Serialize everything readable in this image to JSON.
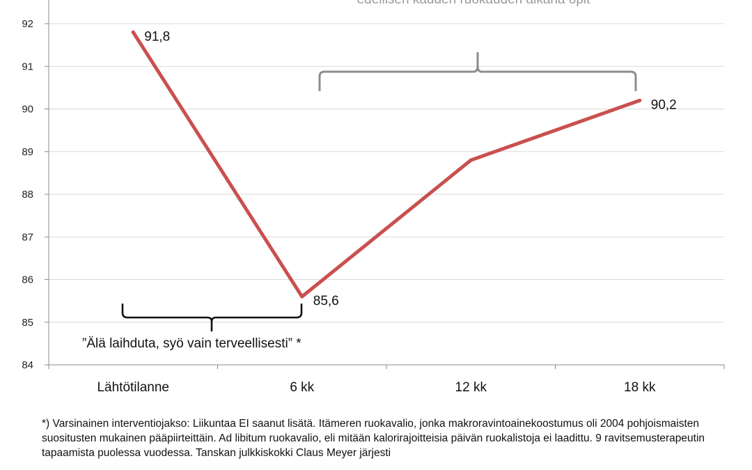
{
  "chart_data": {
    "type": "line",
    "categories": [
      "Lähtötilanne",
      "6 kk",
      "12 kk",
      "18 kk"
    ],
    "series": [
      {
        "values": [
          91.8,
          85.6,
          88.8,
          90.2
        ],
        "color": "#c9504f"
      }
    ],
    "data_labels": [
      "91,8",
      "85,6",
      "",
      "90,2"
    ],
    "ylim": [
      84,
      92
    ],
    "yticks": [
      84,
      85,
      86,
      87,
      88,
      89,
      90,
      91,
      92
    ],
    "grid": true,
    "annotations": {
      "top_note": "edellisen kauden ruokauden aikana opit",
      "bracket_label": "”Älä laihduta, syö vain terveellisesti” *"
    }
  },
  "footnote": "*) Varsinainen  interventiojakso: Liikuntaa EI saanut lisätä. Itämeren ruokavalio, jonka makroravintoainekoostumus oli 2004 pohjoismaisten suositusten mukainen pääpiirteittäin. Ad libitum ruokavalio, eli mitään kalorirajoitteisia päivän ruokalistoja ei laadittu. 9 ravitsemusterapeutin tapaamista puolessa vuodessa. Tanskan julkkiskokki Claus Meyer järjesti"
}
